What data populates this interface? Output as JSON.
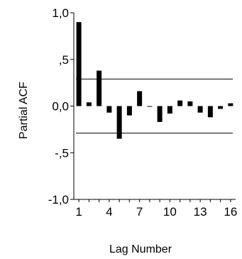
{
  "chart_data": {
    "type": "bar",
    "title": "",
    "xlabel": "Lag Number",
    "ylabel": "Partial ACF",
    "ylim": [
      -1.0,
      1.0
    ],
    "y_ticks": [
      {
        "value": 1.0,
        "label": "1,0"
      },
      {
        "value": 0.5,
        "label": ",5"
      },
      {
        "value": 0.0,
        "label": "0,0"
      },
      {
        "value": -0.5,
        "label": "-,5"
      },
      {
        "value": -1.0,
        "label": "-1,0"
      }
    ],
    "x_ticks": [
      {
        "lag": 1,
        "label": "1"
      },
      {
        "lag": 4,
        "label": "4"
      },
      {
        "lag": 7,
        "label": "7"
      },
      {
        "lag": 10,
        "label": "10"
      },
      {
        "lag": 13,
        "label": "13"
      },
      {
        "lag": 16,
        "label": "16"
      }
    ],
    "categories": [
      1,
      2,
      3,
      4,
      5,
      6,
      7,
      8,
      9,
      10,
      11,
      12,
      13,
      14,
      15,
      16
    ],
    "values": [
      0.9,
      0.04,
      0.38,
      -0.07,
      -0.35,
      -0.1,
      0.16,
      0.0,
      -0.17,
      -0.08,
      0.06,
      0.05,
      -0.07,
      -0.12,
      -0.03,
      0.03
    ],
    "confidence_limits": [
      0.29,
      -0.29
    ],
    "grid": false,
    "colors": {
      "bar": "#000000",
      "axis": "#000000",
      "confidence_line": "#000000"
    }
  }
}
